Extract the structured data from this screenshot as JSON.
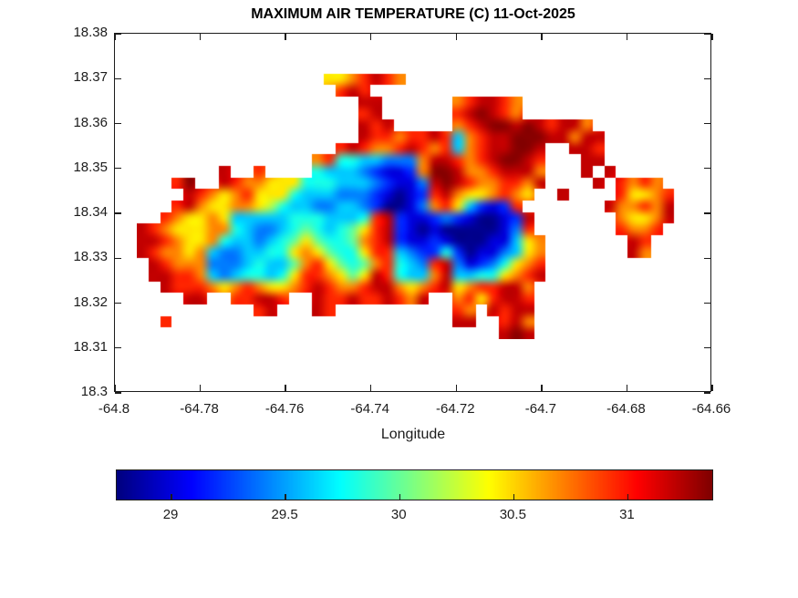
{
  "figure": {
    "title": "MAXIMUM AIR TEMPERATURE (C) 11-Oct-2025"
  },
  "chart_data": {
    "type": "heatmap",
    "title": "MAXIMUM AIR TEMPERATURE (C) 11-Oct-2025",
    "xlabel": "Longitude",
    "ylabel": "",
    "xlim": [
      -64.8,
      -64.66
    ],
    "ylim": [
      18.3,
      18.38
    ],
    "x_ticks": [
      -64.8,
      -64.78,
      -64.76,
      -64.74,
      -64.72,
      -64.7,
      -64.68,
      -64.66
    ],
    "x_tick_labels": [
      "-64.8",
      "-64.78",
      "-64.76",
      "-64.74",
      "-64.72",
      "-64.7",
      "-64.68",
      "-64.66"
    ],
    "y_ticks": [
      18.3,
      18.31,
      18.32,
      18.33,
      18.34,
      18.35,
      18.36,
      18.37,
      18.38
    ],
    "y_tick_labels": [
      "18.3",
      "18.31",
      "18.32",
      "18.33",
      "18.34",
      "18.35",
      "18.36",
      "18.37",
      "18.38"
    ],
    "grid_on": false,
    "colormap": "jet",
    "colorbar": {
      "orientation": "horizontal",
      "range": [
        28.76,
        31.37
      ],
      "ticks": [
        29,
        29.5,
        30,
        30.5,
        31
      ],
      "tick_labels": [
        "29",
        "29.5",
        "30",
        "30.5",
        "31"
      ]
    },
    "heatmap": {
      "extent": {
        "lon_min": -64.7947,
        "lon_max": -64.6633,
        "lat_min": 18.3118,
        "lat_max": 18.3735
      },
      "ncols": 48,
      "nrows": 24,
      "water_char": ".",
      "level_chars": "0123456789ABC",
      "level_values_c": [
        28.8,
        29.0,
        29.2,
        29.4,
        29.6,
        29.8,
        30.0,
        30.2,
        30.45,
        30.7,
        30.95,
        31.2,
        31.35
      ],
      "rows": [
        "................................................",
        "................889ABA9.........................",
        ".................ABA............................",
        "...................BB......9ABBA9...............",
        "...................AB......ABCBA9...............",
        "...................BAB.....9ABCCBCBABB9.........",
        "...................BAA9AABA49ABBCCCBB9BB........",
        ".................ABA99ABA9A49ABBCCB..BBA........",
        "...............9A55443339BBA9ABCCBA...BB........",
        ".......B..A....544432112 9CCB99ABBB9...B.B.......",
        "...AC..BA998885554443211 3BCBA99AA9B....B.A9A9...",
        "....BA989A88854443332101 2AB9889A98..B....A889A.",
        "...AB98899875443344320013 9A84212A.......B99A9B",
        "..A9889844444555 4445AB2112321001 2B.......9889B",
        "BA98889954334565 4568AB2101000001 3A.......A99A.",
        "BBA9889544345686 5569AB2112100011 489.......BA..",
        "BA99894334455898 6558AA4322520113 489.......B9..",
        ".BA999333454469A86569A543AB3123589A.............",
        ".BBAA943455458AA9868BA5449B445589AB.............",
        "..BAAA989A9889ABA99ABB989AB89AABB9..............",
        "....BB..AABBA..BAABAABA9B..9A8ABBA..............",
        "..........AB...BA..........A9.BABB..............",
        "..A........................BB..AB9..............",
        "...............................BCB.............."
      ]
    }
  }
}
